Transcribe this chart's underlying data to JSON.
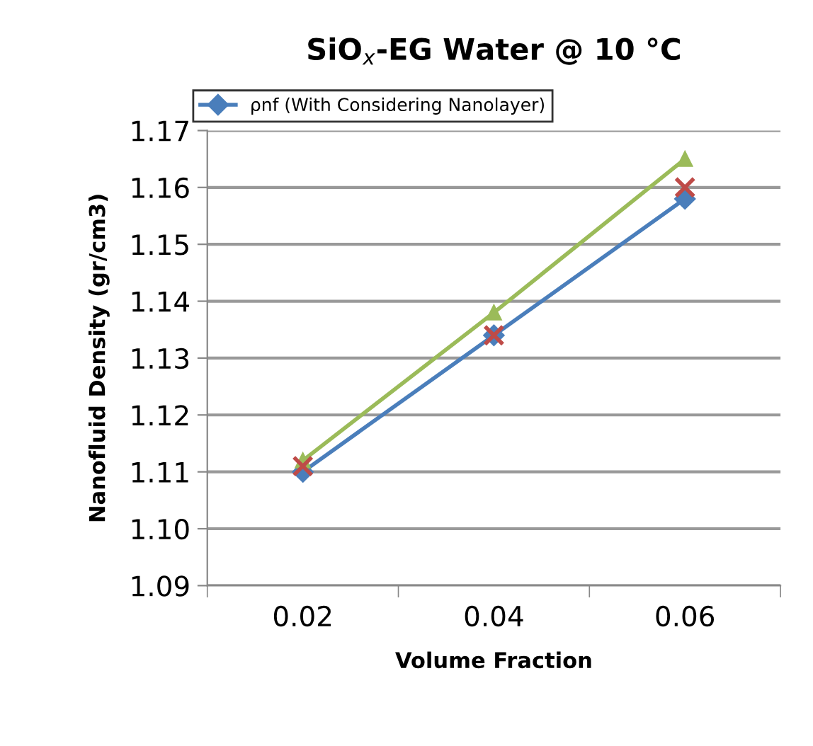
{
  "chart_data": {
    "type": "line",
    "title": "SiO$_{x}$-EG Water @ 10 °C",
    "xlabel": "Volume Fraction",
    "ylabel": "Nanofluid Density (gr/cm3)",
    "categories": [
      "0.02",
      "0.04",
      "0.06"
    ],
    "series": [
      {
        "name": "ρnf (With Considering Nanolayer)",
        "color": "#4a7ebb",
        "marker": "diamond",
        "values": [
          1.11,
          1.134,
          1.158
        ]
      },
      {
        "type": "scatter",
        "x": [
          "0.02",
          "0.04",
          "0.06"
        ],
        "color": "#be4b48",
        "marker": "cross",
        "values": [
          1.111,
          1.134,
          1.16
        ]
      },
      {
        "color": "#9bbb59",
        "marker": "triangle",
        "values": [
          1.112,
          1.138,
          1.165
        ]
      }
    ],
    "ylim": [
      1.09,
      1.17
    ],
    "yticks": [
      {
        "value": 1.09,
        "label": "1.09"
      },
      {
        "value": 1.1,
        "label": "1.10"
      },
      {
        "value": 1.11,
        "label": "1.11"
      },
      {
        "value": 1.12,
        "label": "1.12"
      },
      {
        "value": 1.13,
        "label": "1.13"
      },
      {
        "value": 1.14,
        "label": "1.14"
      },
      {
        "value": 1.15,
        "label": "1.15"
      },
      {
        "value": 1.16,
        "label": "1.16"
      },
      {
        "value": 1.17,
        "label": "1.17"
      }
    ],
    "grid": "y",
    "legend": "top left"
  }
}
